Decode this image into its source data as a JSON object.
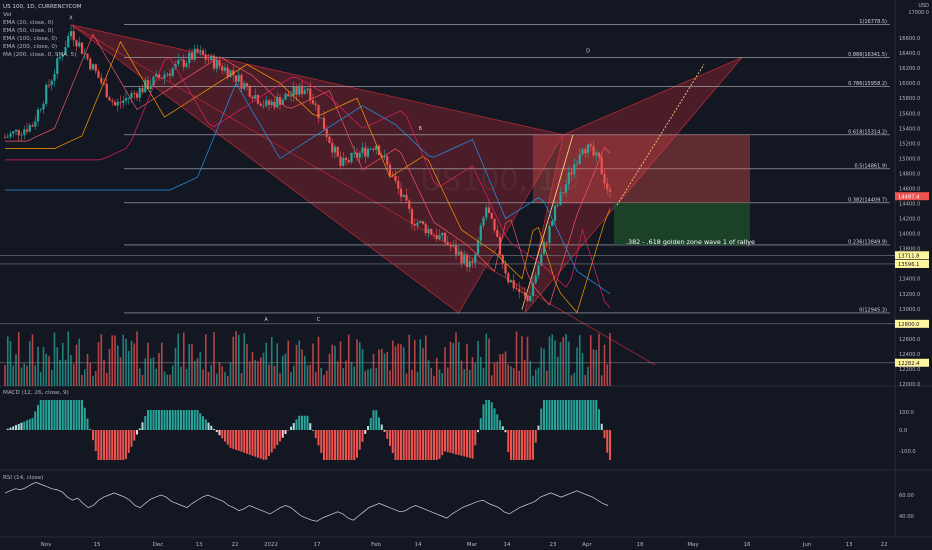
{
  "symbol": "US 100, 1D, CURRENCYCOM",
  "volume_label": "Vol",
  "indicators": [
    "EMA (20, close, 0)",
    "EMA (50, close, 0)",
    "EMA (100, close, 0)",
    "EMA (200, close, 0)",
    "MA (200, close, 0, SMA, 5)"
  ],
  "currency": "USD",
  "currency_sub": "17000.0",
  "annotation": ".382 - .618 golden zone wave 1 of rallye",
  "macd_label": "MACD (12, 26, close, 9)",
  "rsi_label": "RSI (14, close)",
  "colors": {
    "background": "#131722",
    "up": "#26a69a",
    "down": "#ef5350",
    "pattern_fill": "#b22833",
    "zone": "#1e4d2b",
    "projection": "#ffe082",
    "price_badge": "#ef5350",
    "level_badge": "#fff59d"
  },
  "watermark": "US100, 1D",
  "chart_data": {
    "type": "candlestick",
    "x_axis": {
      "ticks": [
        {
          "label": "Nov",
          "x": 46
        },
        {
          "label": "15",
          "x": 97
        },
        {
          "label": "Dec",
          "x": 158
        },
        {
          "label": "13",
          "x": 199
        },
        {
          "label": "22",
          "x": 235
        },
        {
          "label": "2022",
          "x": 271
        },
        {
          "label": "17",
          "x": 317
        },
        {
          "label": "Feb",
          "x": 376
        },
        {
          "label": "14",
          "x": 418
        },
        {
          "label": "Mar",
          "x": 472
        },
        {
          "label": "14",
          "x": 507
        },
        {
          "label": "23",
          "x": 553
        },
        {
          "label": "Apr",
          "x": 587
        },
        {
          "label": "18",
          "x": 640
        },
        {
          "label": "May",
          "x": 693
        },
        {
          "label": "16",
          "x": 747
        },
        {
          "label": "Jun",
          "x": 807
        },
        {
          "label": "13",
          "x": 849
        },
        {
          "label": "22",
          "x": 884
        }
      ]
    },
    "price_axis": {
      "min": 12000,
      "max": 17000,
      "ticks": [
        16600,
        16400,
        16200,
        16000,
        15800,
        15600,
        15400,
        15200,
        15000,
        14800,
        14600,
        14400,
        14200,
        14000,
        13800,
        13600,
        13400,
        13200,
        13000,
        12800,
        12600,
        12400,
        12200,
        12000
      ]
    },
    "fib_levels": [
      {
        "label": "1(16778.5)",
        "price": 16778.5
      },
      {
        "label": "0.886(16341.5)",
        "price": 16341.5
      },
      {
        "label": "0.786(15958.2)",
        "price": 15958.2
      },
      {
        "label": "0.618(15314.2)",
        "price": 15314.2
      },
      {
        "label": "0.5(14861.9)",
        "price": 14861.9
      },
      {
        "label": "0.382(14409.7)",
        "price": 14409.7
      },
      {
        "label": "0.236(13849.9)",
        "price": 13849.9
      },
      {
        "label": "0(12945.3)",
        "price": 12945.3
      }
    ],
    "price_badges": [
      {
        "label": "14497.4",
        "price": 14497.4,
        "style": "current"
      },
      {
        "label": "13711.8",
        "price": 13711.8,
        "style": "level"
      },
      {
        "label": "13596.1",
        "price": 13596.1,
        "style": "level"
      },
      {
        "label": "12800.0",
        "price": 12800.0,
        "style": "level"
      },
      {
        "label": "12282.4",
        "price": 12282.4,
        "style": "level"
      }
    ],
    "pattern_labels": [
      {
        "label": "X",
        "price": 16778.5,
        "day": 24
      },
      {
        "label": "A",
        "price": 12945.3,
        "day": 95
      },
      {
        "label": "B",
        "price": 15314.2,
        "day": 151
      },
      {
        "label": "C",
        "price": 12945.3,
        "day": 114
      },
      {
        "label": "D",
        "price": 16341.5,
        "day": 212
      }
    ],
    "macd_axis": {
      "ticks": [
        "100.0",
        "0.0",
        "-100.0"
      ]
    },
    "rsi_axis": {
      "ticks": [
        "60.00",
        "40.00"
      ]
    },
    "rsi_values": [
      62,
      64,
      66,
      65,
      67,
      70,
      72,
      70,
      68,
      66,
      65,
      63,
      58,
      55,
      57,
      52,
      48,
      50,
      55,
      58,
      60,
      62,
      60,
      58,
      55,
      50,
      48,
      52,
      56,
      58,
      60,
      58,
      54,
      52,
      50,
      48,
      52,
      55,
      58,
      60,
      58,
      56,
      54,
      50,
      48,
      45,
      47,
      50,
      48,
      46,
      44,
      42,
      45,
      48,
      50,
      48,
      44,
      40,
      38,
      36,
      35,
      38,
      40,
      42,
      44,
      42,
      38,
      36,
      40,
      44,
      48,
      50,
      52,
      50,
      48,
      46,
      44,
      45,
      48,
      50,
      48,
      46,
      44,
      42,
      40,
      38,
      42,
      45,
      48,
      50,
      52,
      54,
      55,
      52,
      50,
      48,
      44,
      42,
      45,
      48,
      50,
      52,
      54,
      58,
      60,
      62,
      60,
      58,
      60,
      62,
      64,
      62,
      60,
      58,
      55,
      52,
      50
    ]
  }
}
